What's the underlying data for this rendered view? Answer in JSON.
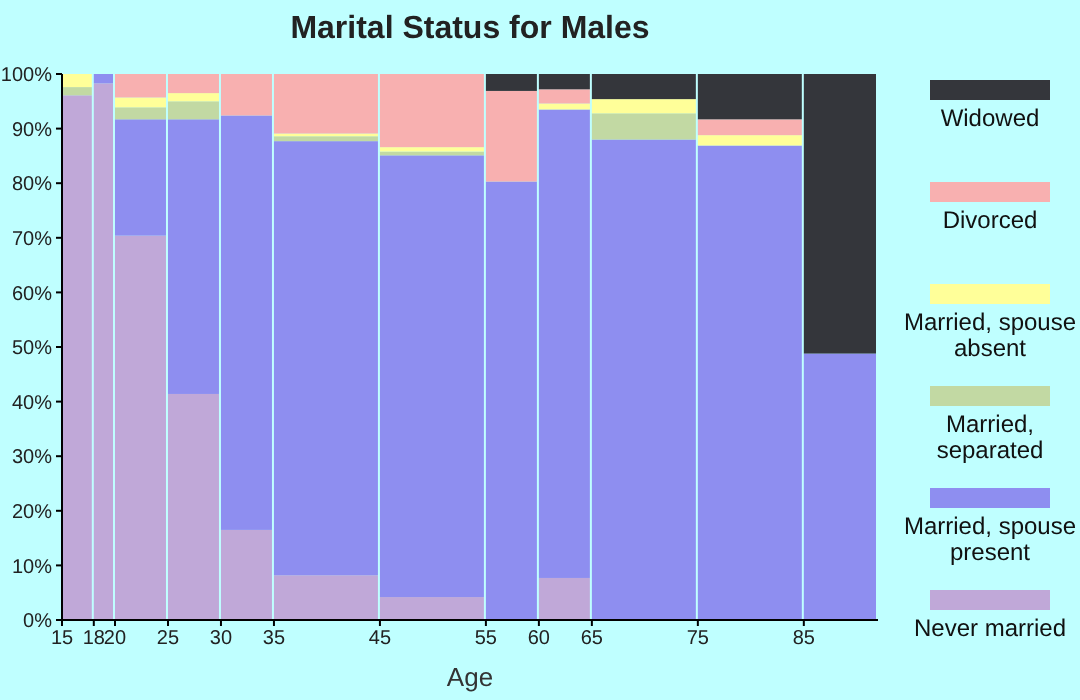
{
  "chart_data": {
    "type": "bar",
    "stacked": true,
    "title": "Marital Status for Males",
    "xlabel": "Age",
    "x": [
      16.5,
      19,
      22.5,
      27.5,
      32.5,
      40,
      50,
      57.5,
      62.5,
      70,
      80,
      88.5
    ],
    "xlim": [
      15,
      92
    ],
    "xticks": [
      15,
      18,
      20,
      25,
      30,
      35,
      45,
      55,
      60,
      65,
      75,
      85
    ],
    "ylim": [
      0,
      100
    ],
    "yticks": [
      {
        "value": 0,
        "label": "0%"
      },
      {
        "value": 10,
        "label": "10%"
      },
      {
        "value": 20,
        "label": "20%"
      },
      {
        "value": 30,
        "label": "30%"
      },
      {
        "value": 40,
        "label": "40%"
      },
      {
        "value": 50,
        "label": "50%"
      },
      {
        "value": 60,
        "label": "60%"
      },
      {
        "value": 70,
        "label": "70%"
      },
      {
        "value": 80,
        "label": "80%"
      },
      {
        "value": 90,
        "label": "90%"
      },
      {
        "value": 100,
        "label": "100%"
      }
    ],
    "grid": false,
    "legend": "right",
    "series": [
      {
        "name": "Never married",
        "color": "#c0a8d8",
        "values": [
          96.1,
          98.3,
          70.4,
          41.4,
          16.5,
          8.2,
          4.2,
          0,
          7.7,
          0,
          0,
          0
        ]
      },
      {
        "name": "Married, spouse present",
        "color": "#8e8ef0",
        "values": [
          0,
          1.7,
          21.3,
          50.3,
          75.9,
          79.5,
          80.9,
          80.3,
          85.8,
          88.0,
          86.9,
          48.8
        ]
      },
      {
        "name": "Married, separated",
        "color": "#c2d9a3",
        "values": [
          1.5,
          0,
          2.2,
          3.3,
          0,
          0.9,
          0.7,
          0,
          0,
          4.8,
          0,
          0
        ]
      },
      {
        "name": "Married, spouse absent",
        "color": "#ffff99",
        "values": [
          2.4,
          0,
          1.8,
          1.5,
          0,
          0.5,
          0.8,
          0,
          1.1,
          2.6,
          1.9,
          0
        ]
      },
      {
        "name": "Divorced",
        "color": "#f8b0b0",
        "values": [
          0,
          0,
          4.3,
          3.5,
          7.6,
          10.9,
          13.4,
          16.6,
          2.6,
          0,
          2.9,
          0
        ]
      },
      {
        "name": "Widowed",
        "color": "#34363b",
        "values": [
          0,
          0,
          0,
          0,
          0,
          0,
          0,
          3.1,
          2.8,
          4.6,
          8.3,
          51.2
        ]
      }
    ]
  }
}
